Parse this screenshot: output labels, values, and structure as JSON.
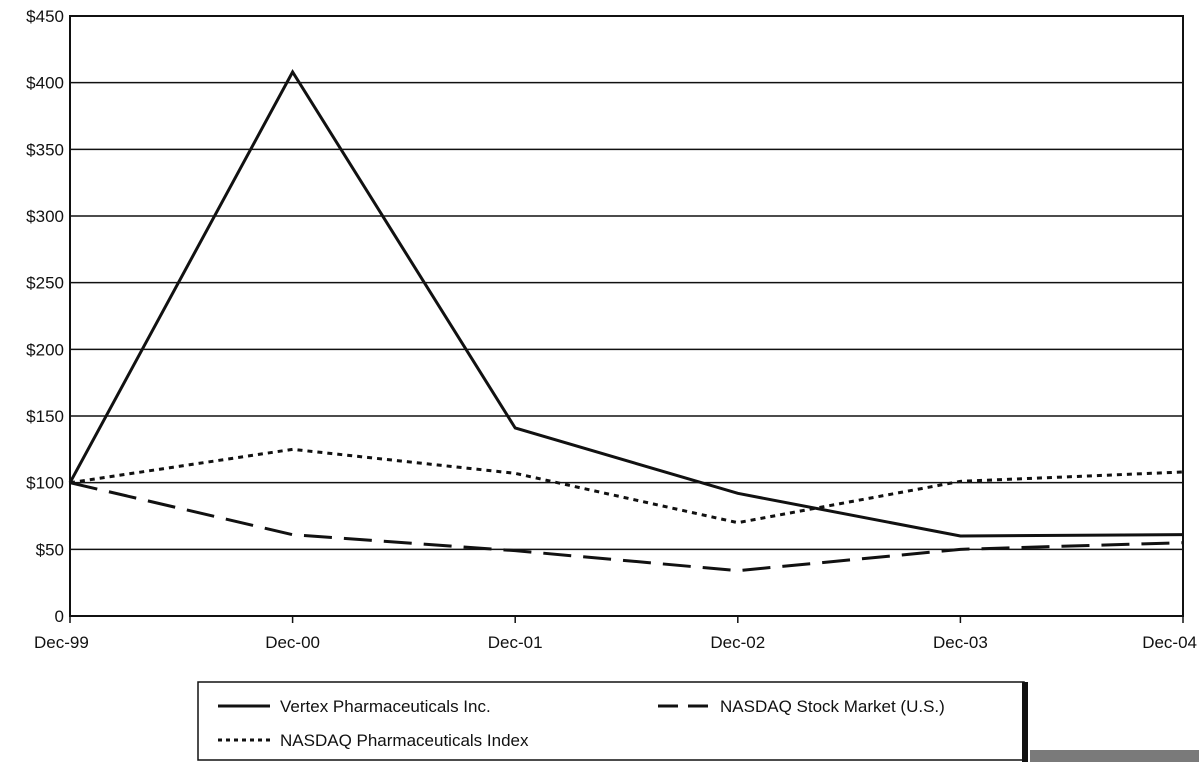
{
  "chart_data": {
    "type": "line",
    "categories": [
      "Dec-99",
      "Dec-00",
      "Dec-01",
      "Dec-02",
      "Dec-03",
      "Dec-04"
    ],
    "y_ticks": [
      "0",
      "$50",
      "$100",
      "$150",
      "$200",
      "$250",
      "$300",
      "$350",
      "$400",
      "$450"
    ],
    "ylim": [
      0,
      450
    ],
    "grid": true,
    "title": "",
    "xlabel": "",
    "ylabel": "",
    "legend_position": "bottom-center",
    "series": [
      {
        "name": "Vertex Pharmaceuticals Inc.",
        "style": "solid",
        "values": [
          100,
          408,
          141,
          92,
          60,
          61
        ]
      },
      {
        "name": "NASDAQ Stock Market (U.S.)",
        "style": "dashed",
        "values": [
          100,
          61,
          49,
          34,
          50,
          55
        ]
      },
      {
        "name": "NASDAQ Pharmaceuticals Index",
        "style": "dotted",
        "values": [
          100,
          125,
          107,
          70,
          101,
          108
        ]
      }
    ],
    "colors": {
      "line": "#111111",
      "grid": "#111111",
      "background": "#ffffff"
    }
  }
}
